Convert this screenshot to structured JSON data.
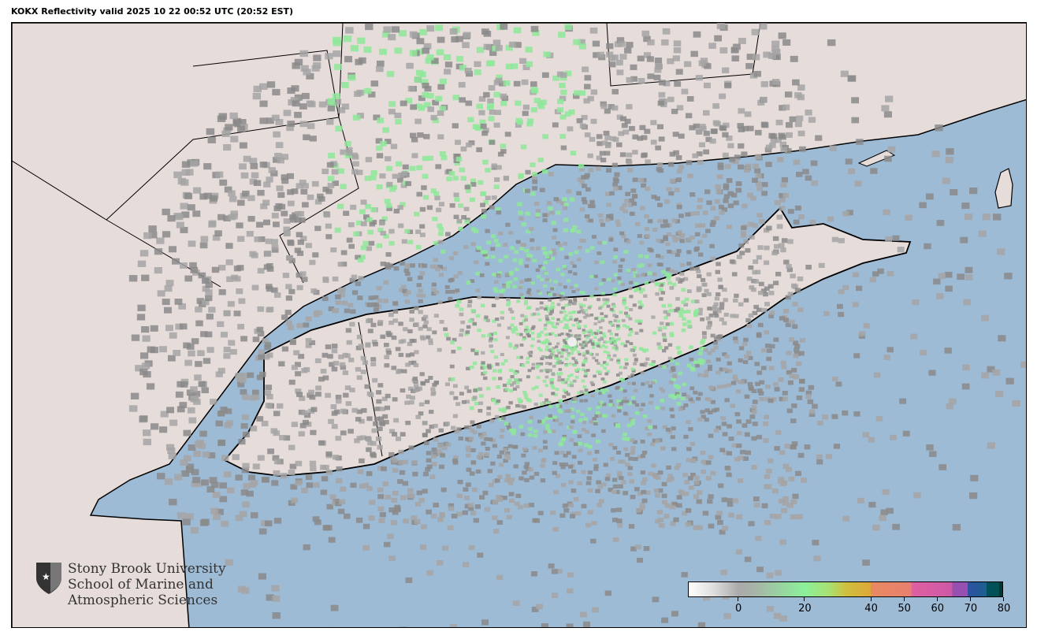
{
  "title": "KOKX Reflectivity valid 2025 10 22 00:52 UTC (20:52 EST)",
  "map": {
    "radar_site": "KOKX",
    "colors": {
      "ocean": "#9ebbd6",
      "land": "#e6dcd9",
      "borders": "#000000"
    }
  },
  "colorbar": {
    "range": [
      -15,
      80
    ],
    "ticks": [
      {
        "value": 0,
        "label": "0"
      },
      {
        "value": 20,
        "label": "20"
      },
      {
        "value": 40,
        "label": "40"
      },
      {
        "value": 50,
        "label": "50"
      },
      {
        "value": 60,
        "label": "60"
      },
      {
        "value": 70,
        "label": "70"
      },
      {
        "value": 80,
        "label": "80"
      }
    ]
  },
  "logo": {
    "icon": "shield-star-icon",
    "lines": [
      "Stony Brook University",
      "School of Marine and",
      "Atmospheric Sciences"
    ]
  }
}
